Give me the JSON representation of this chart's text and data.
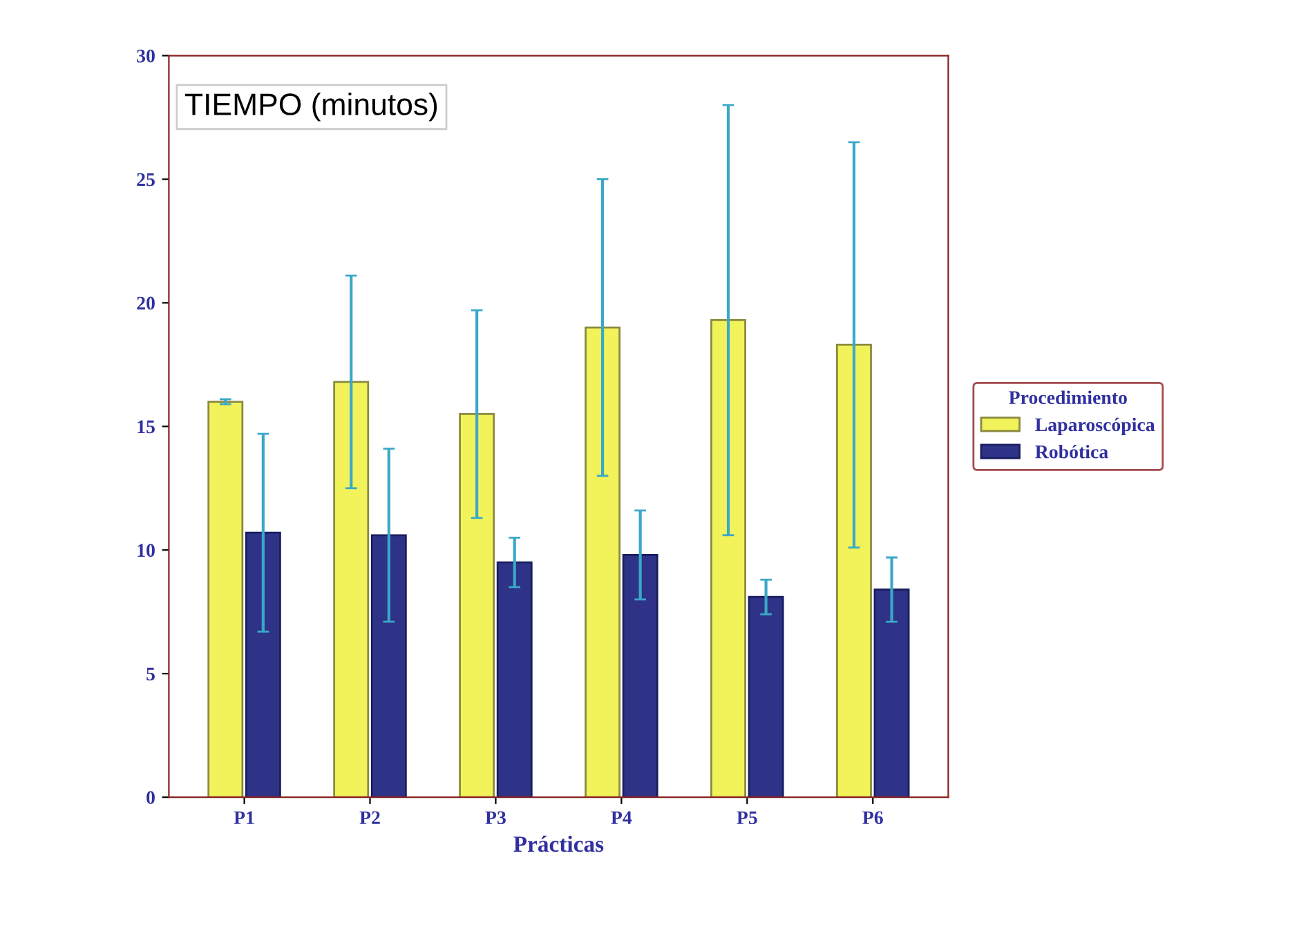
{
  "chart_data": {
    "type": "bar",
    "title": "TIEMPO (minutos)",
    "xlabel": "Prácticas",
    "legend_title": "Procedimiento",
    "legend": "right",
    "grid": false,
    "categories": [
      "P1",
      "P2",
      "P3",
      "P4",
      "P5",
      "P6"
    ],
    "series": [
      {
        "name": "Laparoscópica",
        "color": "#f2f25a",
        "values": [
          16,
          16.8,
          15.5,
          19,
          19.3,
          18.3
        ],
        "errors": [
          0.1,
          4.3,
          4.2,
          6,
          8.7,
          8.2
        ]
      },
      {
        "name": "Robótica",
        "color": "#2e3388",
        "values": [
          10.7,
          10.6,
          9.5,
          9.8,
          8.1,
          8.4
        ],
        "errors": [
          4,
          3.5,
          1,
          1.8,
          0.7,
          1.3
        ]
      }
    ],
    "ylim": [
      0,
      30
    ],
    "yticks": [
      0,
      5,
      10,
      15,
      20,
      25,
      30
    ]
  }
}
